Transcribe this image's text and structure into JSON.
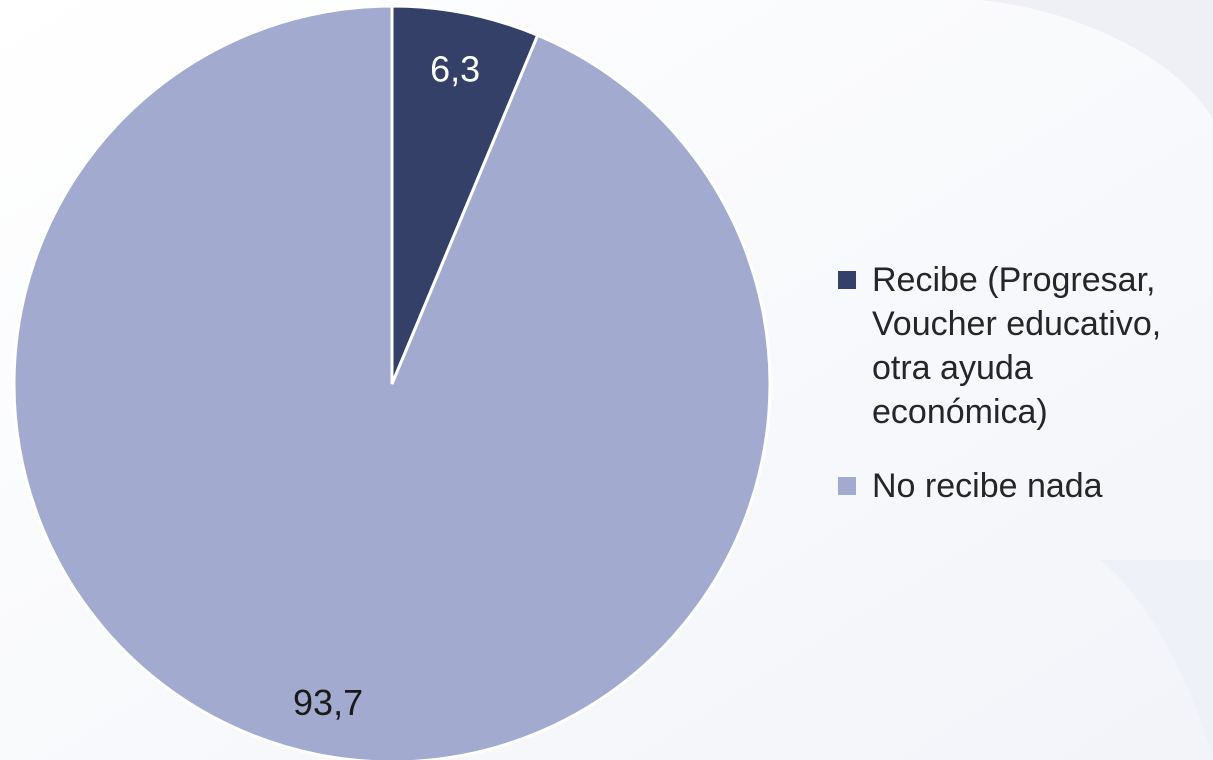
{
  "chart_data": {
    "type": "pie",
    "title": "",
    "start_angle_deg": 0,
    "direction": "clockwise",
    "slices": [
      {
        "label": "Recibe (Progresar, Voucher educativo, otra ayuda económica)",
        "value": 6.3,
        "value_label": "6,3",
        "color": "#344067",
        "label_color": "#ffffff"
      },
      {
        "label": "No recibe nada",
        "value": 93.7,
        "value_label": "93,7",
        "color": "#a2abcf",
        "label_color": "#1a1a1a"
      }
    ],
    "legend": {
      "placement": "right",
      "entries": [
        "Recibe (Progresar, Voucher educativo, otra ayuda económica)",
        "No recibe nada"
      ]
    }
  }
}
